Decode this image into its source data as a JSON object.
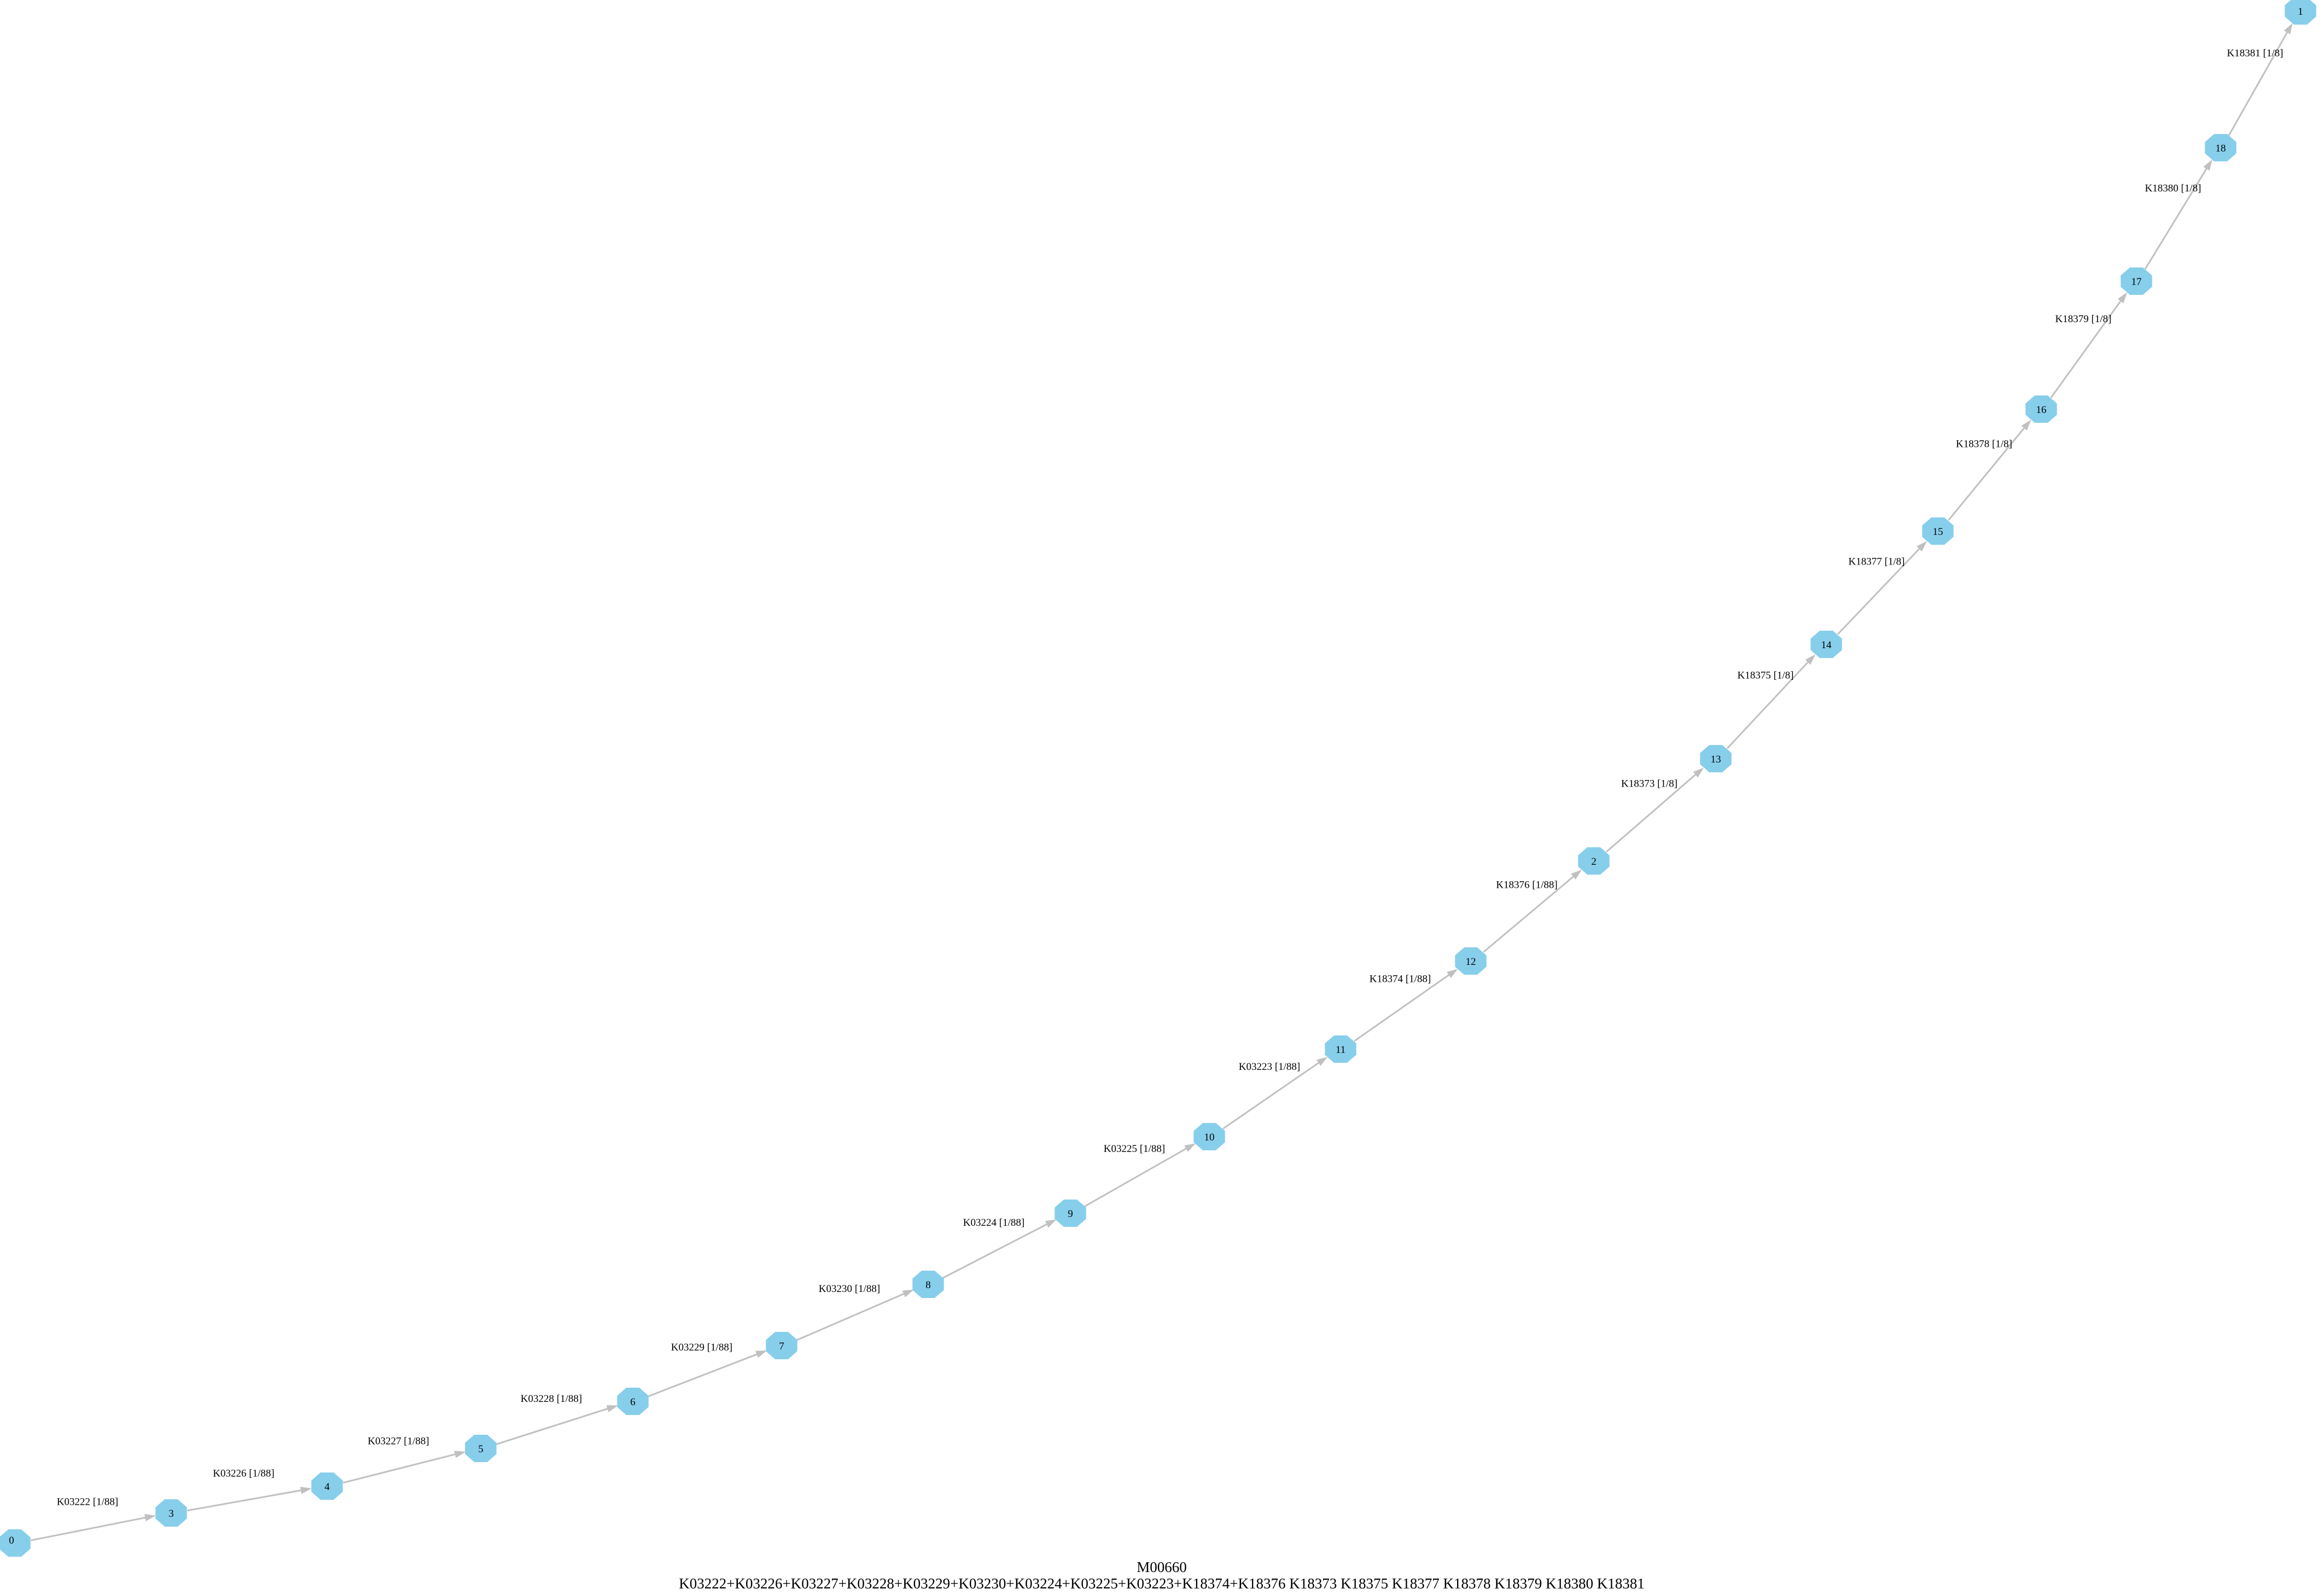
{
  "caption": {
    "module_id": "M00660",
    "definition": "K03222+K03226+K03227+K03228+K03229+K03230+K03224+K03225+K03223+K18374+K18376 K18373 K18375 K18377 K18378 K18379 K18380 K18381"
  },
  "colors": {
    "node_fill": "#87ceeb",
    "edge": "#c0c0c0"
  },
  "nodes": [
    "0",
    "3",
    "4",
    "5",
    "6",
    "7",
    "8",
    "9",
    "10",
    "11",
    "12",
    "2",
    "13",
    "14",
    "15",
    "16",
    "17",
    "18",
    "1"
  ],
  "edges": [
    {
      "from": "0",
      "to": "3",
      "label": "K03222 [1/88]"
    },
    {
      "from": "3",
      "to": "4",
      "label": "K03226 [1/88]"
    },
    {
      "from": "4",
      "to": "5",
      "label": "K03227 [1/88]"
    },
    {
      "from": "5",
      "to": "6",
      "label": "K03228 [1/88]"
    },
    {
      "from": "6",
      "to": "7",
      "label": "K03229 [1/88]"
    },
    {
      "from": "7",
      "to": "8",
      "label": "K03230 [1/88]"
    },
    {
      "from": "8",
      "to": "9",
      "label": "K03224 [1/88]"
    },
    {
      "from": "9",
      "to": "10",
      "label": "K03225 [1/88]"
    },
    {
      "from": "10",
      "to": "11",
      "label": "K03223 [1/88]"
    },
    {
      "from": "11",
      "to": "12",
      "label": "K18374 [1/88]"
    },
    {
      "from": "12",
      "to": "2",
      "label": "K18376 [1/88]"
    },
    {
      "from": "2",
      "to": "13",
      "label": "K18373 [1/8]"
    },
    {
      "from": "13",
      "to": "14",
      "label": "K18375 [1/8]"
    },
    {
      "from": "14",
      "to": "15",
      "label": "K18377 [1/8]"
    },
    {
      "from": "15",
      "to": "16",
      "label": "K18378 [1/8]"
    },
    {
      "from": "16",
      "to": "17",
      "label": "K18379 [1/8]"
    },
    {
      "from": "17",
      "to": "18",
      "label": "K18380 [1/8]"
    },
    {
      "from": "18",
      "to": "1",
      "label": "K18381 [1/8]"
    }
  ]
}
